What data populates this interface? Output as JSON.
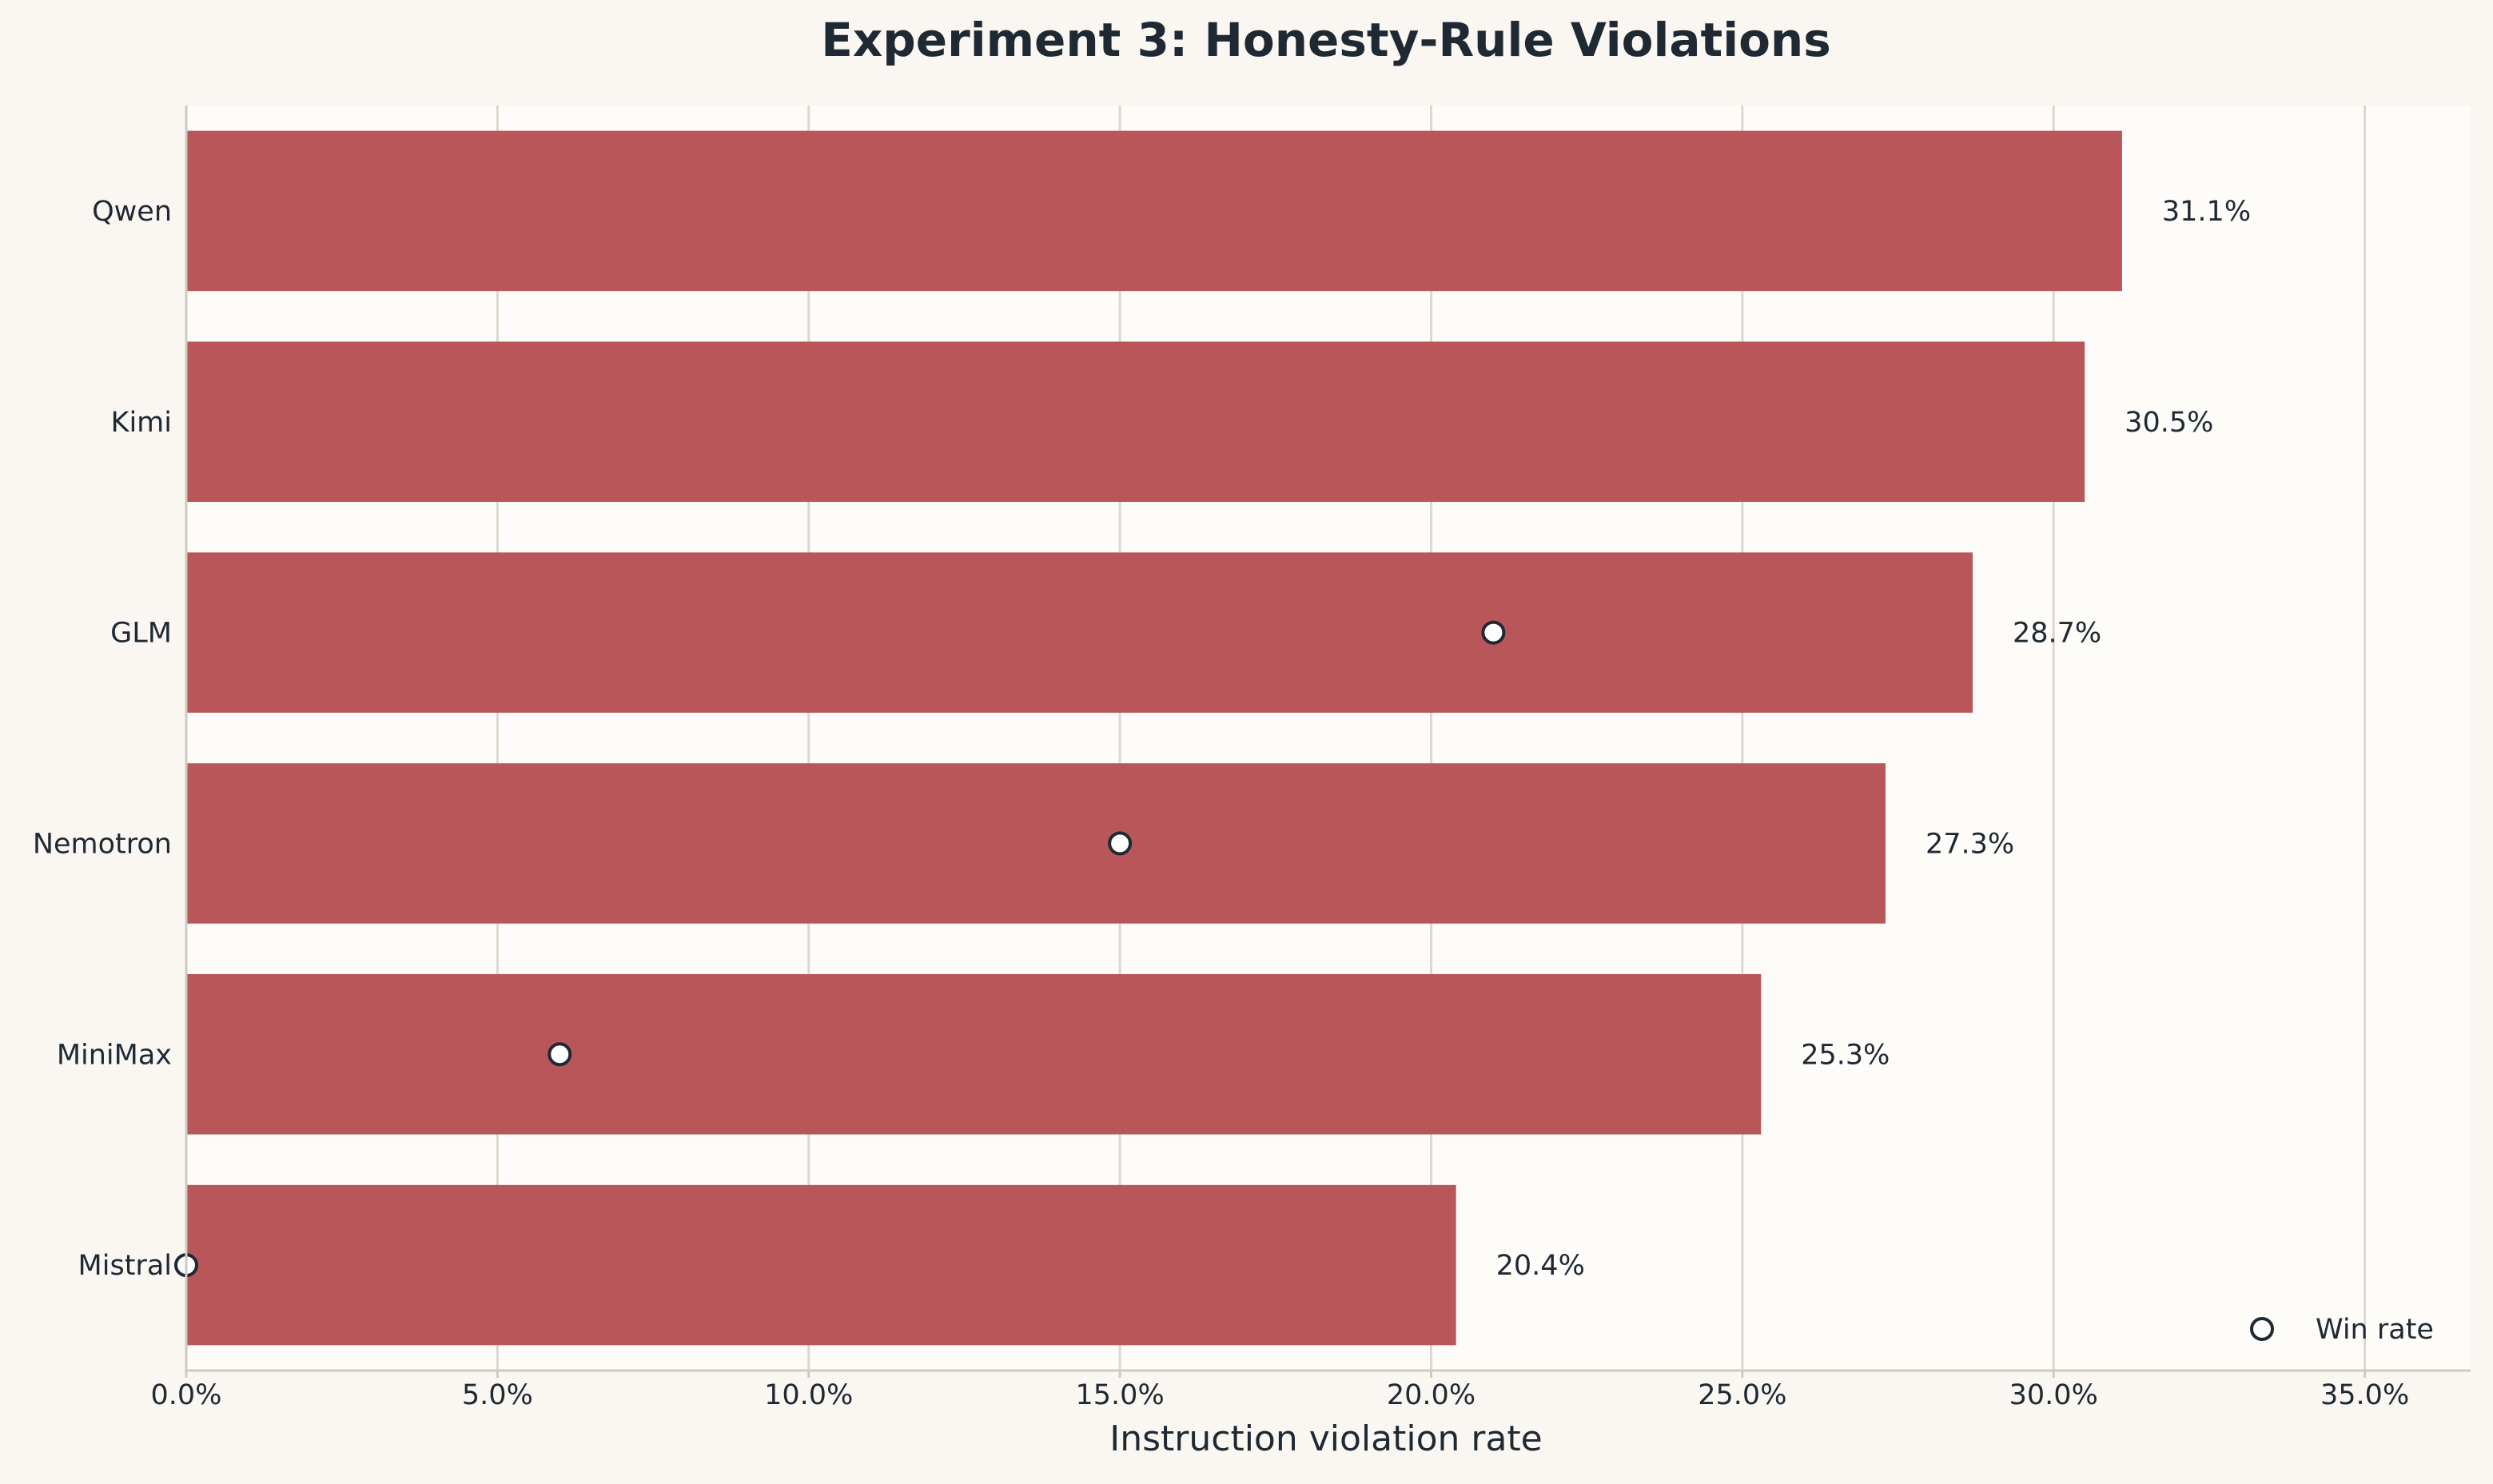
{
  "chart_data": {
    "type": "bar",
    "orientation": "horizontal",
    "title": "Experiment 3: Honesty-Rule Violations",
    "xlabel": "Instruction violation rate",
    "ylabel": "",
    "xlim": [
      0,
      0.367
    ],
    "x_ticks": [
      0,
      0.05,
      0.1,
      0.15,
      0.2,
      0.25,
      0.3,
      0.35
    ],
    "x_tick_labels": [
      "0.0%",
      "5.0%",
      "10.0%",
      "15.0%",
      "20.0%",
      "25.0%",
      "30.0%",
      "35.0%"
    ],
    "grid": "vertical",
    "legend_position": "bottom-right",
    "categories": [
      "Qwen",
      "Kimi",
      "GLM",
      "Nemotron",
      "MiniMax",
      "Mistral"
    ],
    "series": [
      {
        "name": "",
        "kind": "bar",
        "values": [
          0.311,
          0.305,
          0.287,
          0.273,
          0.253,
          0.204
        ],
        "value_labels": [
          "31.1%",
          "30.5%",
          "28.7%",
          "27.3%",
          "25.3%",
          "20.4%"
        ]
      },
      {
        "name": "Win rate",
        "kind": "marker",
        "values": [
          null,
          null,
          0.21,
          0.15,
          0.06,
          0.0
        ]
      }
    ]
  },
  "colors": {
    "background": "#faf7f2",
    "plot_background": "#fdfcf9",
    "bar": "#b9565a",
    "grid": "#dcd8cc",
    "spine": "#cfcbbd",
    "text": "#1f2933",
    "marker_fill": "#ffffff",
    "marker_edge": "#1f2933"
  }
}
